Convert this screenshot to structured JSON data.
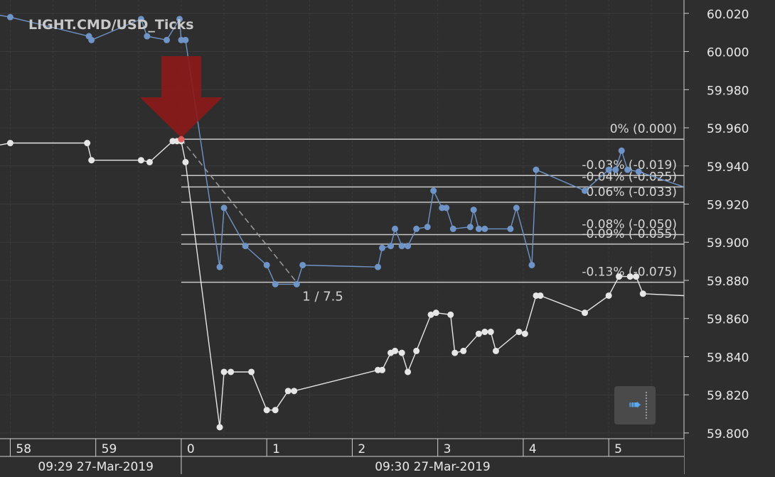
{
  "chart_data": {
    "type": "line",
    "title": "LIGHT.CMD/USD_Ticks",
    "ylim": [
      59.797,
      60.027
    ],
    "y_ticks": [
      "60.020",
      "60.000",
      "59.980",
      "59.960",
      "59.940",
      "59.920",
      "59.900",
      "59.880",
      "59.860",
      "59.840",
      "59.820",
      "59.800"
    ],
    "y_tick_values": [
      60.02,
      60.0,
      59.98,
      59.96,
      59.94,
      59.92,
      59.9,
      59.88,
      59.86,
      59.84,
      59.82,
      59.8
    ],
    "x_minor_labels": [
      "58",
      "59",
      "0",
      "1",
      "2",
      "3",
      "4",
      "5"
    ],
    "x_minor_values": [
      -2,
      -1,
      0,
      1,
      2,
      3,
      4,
      5
    ],
    "x_major_labels": [
      "09:29 27-Mar-2019",
      "09:30 27-Mar-2019"
    ],
    "x_major_values": [
      -2,
      0
    ],
    "xlim": [
      -2.12,
      5.88
    ],
    "grid": true,
    "series": [
      {
        "color": "#6e94c8",
        "points": [
          [
            -2.12,
            60.019
          ],
          [
            -2.0,
            60.018
          ],
          [
            -1.08,
            60.008
          ],
          [
            -1.05,
            60.006
          ],
          [
            -0.47,
            60.017
          ],
          [
            -0.4,
            60.008
          ],
          [
            -0.17,
            60.006
          ],
          [
            -0.02,
            60.017
          ],
          [
            0.0,
            60.006
          ],
          [
            0.05,
            60.006
          ],
          [
            0.45,
            59.887
          ],
          [
            0.5,
            59.918
          ],
          [
            0.75,
            59.898
          ],
          [
            1.0,
            59.888
          ],
          [
            1.1,
            59.878
          ],
          [
            1.35,
            59.878
          ],
          [
            1.42,
            59.888
          ],
          [
            2.3,
            59.887
          ],
          [
            2.35,
            59.897
          ],
          [
            2.45,
            59.898
          ],
          [
            2.5,
            59.907
          ],
          [
            2.58,
            59.898
          ],
          [
            2.65,
            59.898
          ],
          [
            2.75,
            59.907
          ],
          [
            2.88,
            59.908
          ],
          [
            2.95,
            59.927
          ],
          [
            3.05,
            59.918
          ],
          [
            3.1,
            59.918
          ],
          [
            3.18,
            59.907
          ],
          [
            3.38,
            59.908
          ],
          [
            3.42,
            59.917
          ],
          [
            3.48,
            59.907
          ],
          [
            3.55,
            59.907
          ],
          [
            3.85,
            59.907
          ],
          [
            3.92,
            59.918
          ],
          [
            4.1,
            59.888
          ],
          [
            4.15,
            59.938
          ],
          [
            4.72,
            59.927
          ],
          [
            5.0,
            59.938
          ],
          [
            5.08,
            59.938
          ],
          [
            5.15,
            59.948
          ],
          [
            5.22,
            59.938
          ],
          [
            5.35,
            59.937
          ],
          [
            5.88,
            59.929
          ]
        ]
      },
      {
        "color": "#e6e6e6",
        "points": [
          [
            -2.12,
            59.951
          ],
          [
            -2.0,
            59.952
          ],
          [
            -1.1,
            59.952
          ],
          [
            -1.05,
            59.943
          ],
          [
            -0.47,
            59.943
          ],
          [
            -0.37,
            59.942
          ],
          [
            -0.1,
            59.953
          ],
          [
            -0.05,
            59.953
          ],
          [
            0.0,
            59.953
          ],
          [
            0.05,
            59.942
          ],
          [
            0.45,
            59.803
          ],
          [
            0.5,
            59.832
          ],
          [
            0.58,
            59.832
          ],
          [
            0.82,
            59.832
          ],
          [
            1.0,
            59.812
          ],
          [
            1.1,
            59.812
          ],
          [
            1.25,
            59.822
          ],
          [
            1.32,
            59.822
          ],
          [
            2.3,
            59.833
          ],
          [
            2.35,
            59.833
          ],
          [
            2.45,
            59.842
          ],
          [
            2.5,
            59.843
          ],
          [
            2.58,
            59.842
          ],
          [
            2.65,
            59.832
          ],
          [
            2.75,
            59.843
          ],
          [
            2.92,
            59.862
          ],
          [
            2.98,
            59.863
          ],
          [
            3.15,
            59.862
          ],
          [
            3.2,
            59.842
          ],
          [
            3.3,
            59.843
          ],
          [
            3.48,
            59.852
          ],
          [
            3.55,
            59.853
          ],
          [
            3.62,
            59.853
          ],
          [
            3.68,
            59.843
          ],
          [
            3.95,
            59.853
          ],
          [
            4.02,
            59.852
          ],
          [
            4.15,
            59.872
          ],
          [
            4.2,
            59.872
          ],
          [
            4.72,
            59.863
          ],
          [
            5.0,
            59.872
          ],
          [
            5.12,
            59.882
          ],
          [
            5.25,
            59.882
          ],
          [
            5.32,
            59.882
          ],
          [
            5.4,
            59.873
          ],
          [
            5.88,
            59.872
          ]
        ]
      }
    ],
    "fibonacci_levels": [
      {
        "label": "0% (0.000)",
        "value": 59.954
      },
      {
        "label": "-0.03% (-0.019)",
        "value": 59.935
      },
      {
        "label": "-0.04% (-0.025)",
        "value": 59.929
      },
      {
        "label": "-0.06% (-0.033)",
        "value": 59.921
      },
      {
        "label": "-0.08% (-0.050)",
        "value": 59.904
      },
      {
        "label": "-0.09% (-0.055)",
        "value": 59.899
      },
      {
        "label": "-0.13% (-0.075)",
        "value": 59.879
      }
    ],
    "fibonacci_start_x": 0.0,
    "trendline": {
      "from": [
        0.0,
        59.954
      ],
      "to": [
        1.35,
        59.879
      ],
      "label": "1 / 7.5"
    },
    "marker": {
      "type": "down-arrow",
      "x": 0.0,
      "y": 59.954,
      "color": "#8b1a1a"
    }
  },
  "controls": {
    "scroll_button_icon": "arrow-right-icon",
    "scroll_button_glyph": "➠"
  }
}
